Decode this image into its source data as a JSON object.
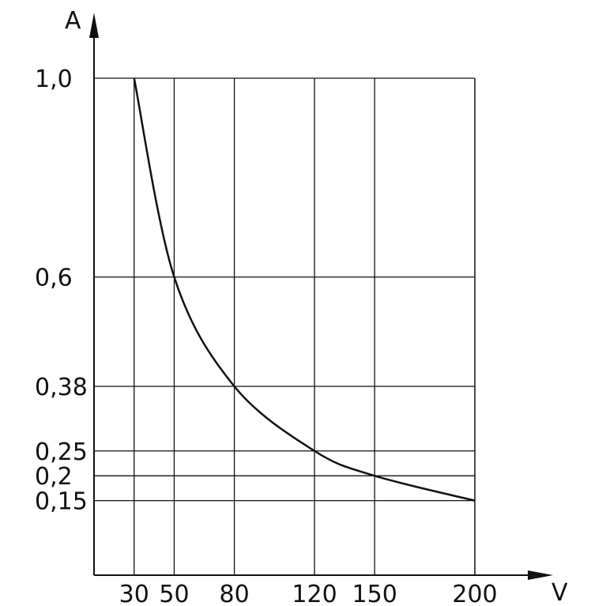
{
  "chart_data": {
    "type": "line",
    "title": "",
    "xlabel": "V",
    "ylabel": "A",
    "grid": true,
    "xlim": [
      10,
      200
    ],
    "ylim": [
      0,
      1.0
    ],
    "x_ticks": [
      {
        "value": 30,
        "label": "30"
      },
      {
        "value": 50,
        "label": "50"
      },
      {
        "value": 80,
        "label": "80"
      },
      {
        "value": 120,
        "label": "120"
      },
      {
        "value": 150,
        "label": "150"
      },
      {
        "value": 200,
        "label": "200"
      }
    ],
    "y_ticks": [
      {
        "value": 1.0,
        "label": "1,0"
      },
      {
        "value": 0.6,
        "label": "0,6"
      },
      {
        "value": 0.38,
        "label": "0,38"
      },
      {
        "value": 0.25,
        "label": "0,25"
      },
      {
        "value": 0.2,
        "label": "0,2"
      },
      {
        "value": 0.15,
        "label": "0,15"
      }
    ],
    "series": [
      {
        "x": [
          30,
          50,
          80,
          120,
          150,
          200
        ],
        "y": [
          1.0,
          0.6,
          0.38,
          0.25,
          0.2,
          0.15
        ]
      }
    ]
  }
}
